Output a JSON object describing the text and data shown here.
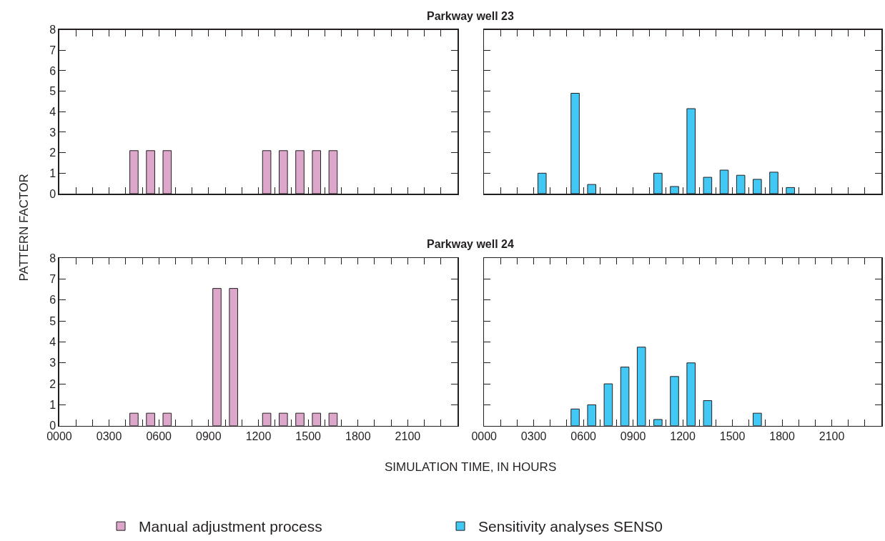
{
  "chart_data": [
    {
      "type": "bar",
      "title": "Parkway well 23",
      "ylabel": "PATTERN FACTOR",
      "xlim": [
        0,
        2400
      ],
      "xticks": [
        {
          "value": 0,
          "label": "0000"
        },
        {
          "value": 100,
          "label": null
        },
        {
          "value": 200,
          "label": null
        },
        {
          "value": 300,
          "label": "0300"
        },
        {
          "value": 400,
          "label": null
        },
        {
          "value": 500,
          "label": null
        },
        {
          "value": 600,
          "label": "0600"
        },
        {
          "value": 700,
          "label": null
        },
        {
          "value": 800,
          "label": null
        },
        {
          "value": 900,
          "label": "0900"
        },
        {
          "value": 1000,
          "label": null
        },
        {
          "value": 1100,
          "label": null
        },
        {
          "value": 1200,
          "label": "1200"
        },
        {
          "value": 1300,
          "label": null
        },
        {
          "value": 1400,
          "label": null
        },
        {
          "value": 1500,
          "label": "1500"
        },
        {
          "value": 1600,
          "label": null
        },
        {
          "value": 1700,
          "label": null
        },
        {
          "value": 1800,
          "label": "1800"
        },
        {
          "value": 1900,
          "label": null
        },
        {
          "value": 2000,
          "label": null
        },
        {
          "value": 2100,
          "label": "2100"
        },
        {
          "value": 2200,
          "label": null
        },
        {
          "value": 2300,
          "label": null
        },
        {
          "value": 2400,
          "label": null
        }
      ],
      "ylim": [
        0,
        8
      ],
      "yticks": [
        0,
        1,
        2,
        3,
        4,
        5,
        6,
        7,
        8
      ],
      "tick_labels": "y",
      "legend": "bottom",
      "grid": false,
      "series": [
        {
          "name": "Manual adjustment process",
          "color": "#dda7cc",
          "x": [
            450,
            550,
            650,
            1250,
            1350,
            1450,
            1550,
            1650
          ],
          "values": [
            2.1,
            2.1,
            2.1,
            2.1,
            2.1,
            2.1,
            2.1,
            2.1
          ]
        }
      ]
    },
    {
      "type": "bar",
      "xlim": [
        0,
        2400
      ],
      "xticks": [
        {
          "value": 0,
          "label": "0000"
        },
        {
          "value": 100,
          "label": null
        },
        {
          "value": 200,
          "label": null
        },
        {
          "value": 300,
          "label": "0300"
        },
        {
          "value": 400,
          "label": null
        },
        {
          "value": 500,
          "label": null
        },
        {
          "value": 600,
          "label": "0600"
        },
        {
          "value": 700,
          "label": null
        },
        {
          "value": 800,
          "label": null
        },
        {
          "value": 900,
          "label": "0900"
        },
        {
          "value": 1000,
          "label": null
        },
        {
          "value": 1100,
          "label": null
        },
        {
          "value": 1200,
          "label": "1200"
        },
        {
          "value": 1300,
          "label": null
        },
        {
          "value": 1400,
          "label": null
        },
        {
          "value": 1500,
          "label": "1500"
        },
        {
          "value": 1600,
          "label": null
        },
        {
          "value": 1700,
          "label": null
        },
        {
          "value": 1800,
          "label": "1800"
        },
        {
          "value": 1900,
          "label": null
        },
        {
          "value": 2000,
          "label": null
        },
        {
          "value": 2100,
          "label": "2100"
        },
        {
          "value": 2200,
          "label": null
        },
        {
          "value": 2300,
          "label": null
        },
        {
          "value": 2400,
          "label": null
        }
      ],
      "ylim": [
        0,
        8
      ],
      "yticks": [
        0,
        1,
        2,
        3,
        4,
        5,
        6,
        7,
        8
      ],
      "tick_labels": false,
      "legend": "bottom",
      "grid": false,
      "series": [
        {
          "name": "Sensitivity analyses SENS0",
          "color": "#42c8f4",
          "x": [
            350,
            550,
            650,
            1050,
            1150,
            1250,
            1350,
            1450,
            1550,
            1650,
            1750,
            1850
          ],
          "values": [
            1.0,
            4.9,
            0.45,
            1.0,
            0.35,
            4.15,
            0.8,
            1.15,
            0.9,
            0.7,
            1.05,
            0.3
          ]
        }
      ]
    },
    {
      "type": "bar",
      "title": "Parkway well 24",
      "xlabel": "SIMULATION TIME, IN HOURS",
      "xlim": [
        0,
        2400
      ],
      "xticks": [
        {
          "value": 0,
          "label": "0000"
        },
        {
          "value": 100,
          "label": null
        },
        {
          "value": 200,
          "label": null
        },
        {
          "value": 300,
          "label": "0300"
        },
        {
          "value": 400,
          "label": null
        },
        {
          "value": 500,
          "label": null
        },
        {
          "value": 600,
          "label": "0600"
        },
        {
          "value": 700,
          "label": null
        },
        {
          "value": 800,
          "label": null
        },
        {
          "value": 900,
          "label": "0900"
        },
        {
          "value": 1000,
          "label": null
        },
        {
          "value": 1100,
          "label": null
        },
        {
          "value": 1200,
          "label": "1200"
        },
        {
          "value": 1300,
          "label": null
        },
        {
          "value": 1400,
          "label": null
        },
        {
          "value": 1500,
          "label": "1500"
        },
        {
          "value": 1600,
          "label": null
        },
        {
          "value": 1700,
          "label": null
        },
        {
          "value": 1800,
          "label": "1800"
        },
        {
          "value": 1900,
          "label": null
        },
        {
          "value": 2000,
          "label": null
        },
        {
          "value": 2100,
          "label": "2100"
        },
        {
          "value": 2200,
          "label": null
        },
        {
          "value": 2300,
          "label": null
        },
        {
          "value": 2400,
          "label": null
        }
      ],
      "ylim": [
        0,
        8
      ],
      "yticks": [
        0,
        1,
        2,
        3,
        4,
        5,
        6,
        7,
        8
      ],
      "legend": "bottom",
      "grid": false,
      "series": [
        {
          "name": "Manual adjustment process",
          "color": "#dda7cc",
          "x": [
            450,
            550,
            650,
            950,
            1050,
            1250,
            1350,
            1450,
            1550,
            1650
          ],
          "values": [
            0.6,
            0.6,
            0.6,
            6.55,
            6.55,
            0.6,
            0.6,
            0.6,
            0.6,
            0.6
          ]
        }
      ]
    },
    {
      "type": "bar",
      "xlim": [
        0,
        2400
      ],
      "xticks": [
        {
          "value": 0,
          "label": "0000"
        },
        {
          "value": 100,
          "label": null
        },
        {
          "value": 200,
          "label": null
        },
        {
          "value": 300,
          "label": "0300"
        },
        {
          "value": 400,
          "label": null
        },
        {
          "value": 500,
          "label": null
        },
        {
          "value": 600,
          "label": "0600"
        },
        {
          "value": 700,
          "label": null
        },
        {
          "value": 800,
          "label": null
        },
        {
          "value": 900,
          "label": "0900"
        },
        {
          "value": 1000,
          "label": null
        },
        {
          "value": 1100,
          "label": null
        },
        {
          "value": 1200,
          "label": "1200"
        },
        {
          "value": 1300,
          "label": null
        },
        {
          "value": 1400,
          "label": null
        },
        {
          "value": 1500,
          "label": "1500"
        },
        {
          "value": 1600,
          "label": null
        },
        {
          "value": 1700,
          "label": null
        },
        {
          "value": 1800,
          "label": "1800"
        },
        {
          "value": 1900,
          "label": null
        },
        {
          "value": 2000,
          "label": null
        },
        {
          "value": 2100,
          "label": "2100"
        },
        {
          "value": 2200,
          "label": null
        },
        {
          "value": 2300,
          "label": null
        },
        {
          "value": 2400,
          "label": null
        }
      ],
      "ylim": [
        0,
        8
      ],
      "yticks": [
        0,
        1,
        2,
        3,
        4,
        5,
        6,
        7,
        8
      ],
      "tick_labels": "x",
      "legend": "bottom",
      "grid": false,
      "series": [
        {
          "name": "Sensitivity analyses SENS0",
          "color": "#42c8f4",
          "x": [
            550,
            650,
            750,
            850,
            950,
            1050,
            1150,
            1250,
            1350,
            1650
          ],
          "values": [
            0.8,
            1.0,
            2.0,
            2.8,
            3.75,
            0.3,
            2.35,
            3.0,
            1.2,
            0.6
          ]
        }
      ]
    }
  ]
}
